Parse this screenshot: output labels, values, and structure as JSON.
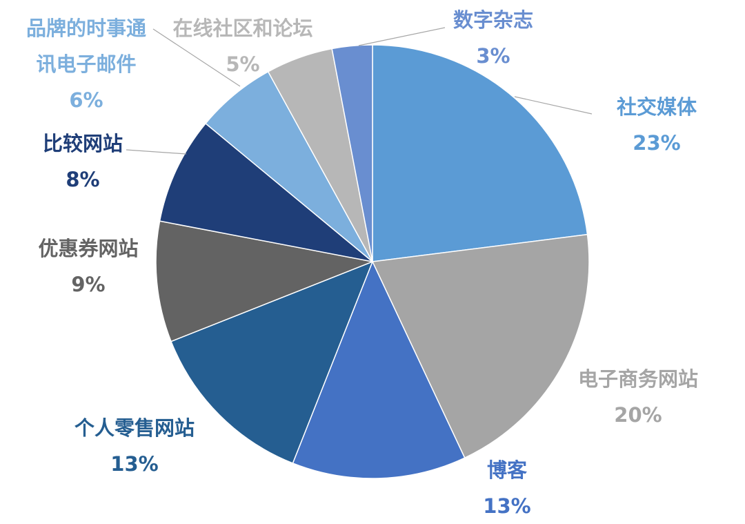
{
  "chart_data": {
    "type": "pie",
    "start": "top",
    "direction": "clockwise",
    "slices": [
      {
        "label": "社交媒体",
        "value": 23,
        "value_label": "23%",
        "color": "#5b9bd5"
      },
      {
        "label": "电子商务网站",
        "value": 20,
        "value_label": "20%",
        "color": "#a5a5a5"
      },
      {
        "label": "博客",
        "value": 13,
        "value_label": "13%",
        "color": "#4472c4"
      },
      {
        "label": "个人零售网站",
        "value": 13,
        "value_label": "13%",
        "color": "#255e91"
      },
      {
        "label": "优惠券网站",
        "value": 9,
        "value_label": "9%",
        "color": "#636363"
      },
      {
        "label": "比较网站",
        "value": 8,
        "value_label": "8%",
        "color": "#1f3e78"
      },
      {
        "label": "品牌的时事通讯电子邮件",
        "label_lines": [
          "品牌的时事通",
          "讯电子邮件"
        ],
        "value": 6,
        "value_label": "6%",
        "color": "#7cafdd"
      },
      {
        "label": "在线社区和论坛",
        "value": 5,
        "value_label": "5%",
        "color": "#b7b7b7"
      },
      {
        "label": "数字杂志",
        "value": 3,
        "value_label": "3%",
        "color": "#698ed0"
      }
    ]
  }
}
